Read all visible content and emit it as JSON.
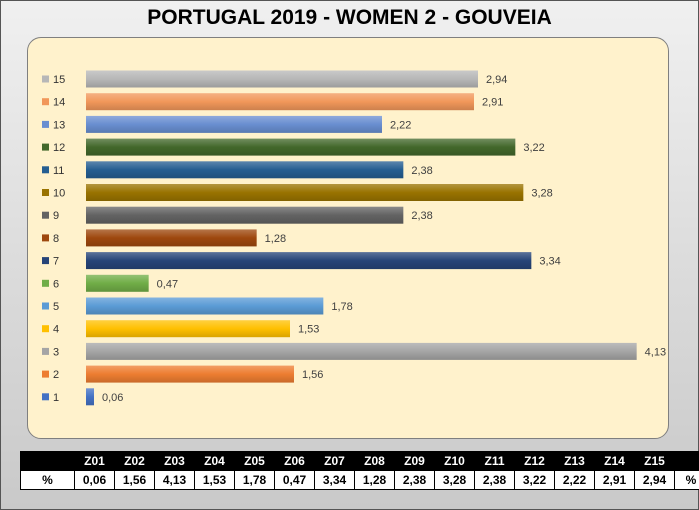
{
  "title": "PORTUGAL 2019 - WOMEN 2 - GOUVEIA",
  "chart_data": {
    "type": "bar",
    "orientation": "horizontal",
    "categories": [
      "1",
      "2",
      "3",
      "4",
      "5",
      "6",
      "7",
      "8",
      "9",
      "10",
      "11",
      "12",
      "13",
      "14",
      "15"
    ],
    "values": [
      0.06,
      1.56,
      4.13,
      1.53,
      1.78,
      0.47,
      3.34,
      1.28,
      2.38,
      3.28,
      2.38,
      3.22,
      2.22,
      2.91,
      2.94
    ],
    "data_labels": [
      "0,06",
      "1,56",
      "4,13",
      "1,53",
      "1,78",
      "0,47",
      "3,34",
      "1,28",
      "2,38",
      "3,28",
      "2,38",
      "3,22",
      "2,22",
      "2,91",
      "2,94"
    ],
    "colors": [
      "#4472c4",
      "#ed7d31",
      "#a5a5a5",
      "#ffc000",
      "#5b9bd5",
      "#70ad47",
      "#264478",
      "#9e480e",
      "#636363",
      "#997300",
      "#255e91",
      "#43682b",
      "#698ed0",
      "#f1975a",
      "#b7b7b7"
    ],
    "xlim": [
      0,
      4.5
    ],
    "legend": "left",
    "grid": false
  },
  "table": {
    "row_label": "%",
    "row_unit": "%",
    "headers": [
      "Z01",
      "Z02",
      "Z03",
      "Z04",
      "Z05",
      "Z06",
      "Z07",
      "Z08",
      "Z09",
      "Z10",
      "Z11",
      "Z12",
      "Z13",
      "Z14",
      "Z15"
    ],
    "values": [
      "0,06",
      "1,56",
      "4,13",
      "1,53",
      "1,78",
      "0,47",
      "3,34",
      "1,28",
      "2,38",
      "3,28",
      "2,38",
      "3,22",
      "2,22",
      "2,91",
      "2,94"
    ]
  }
}
